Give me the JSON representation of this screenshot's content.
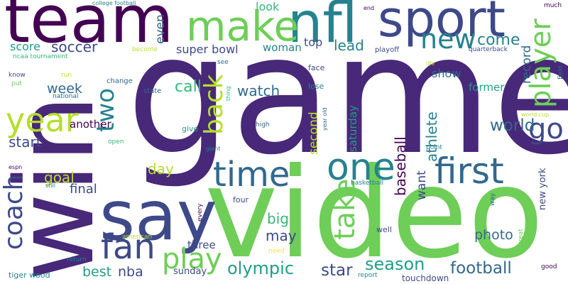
{
  "colors": {
    "background": "#ffffff",
    "palette": [
      "#440154",
      "#482878",
      "#3e4989",
      "#31688e",
      "#26828e",
      "#1f9e89",
      "#35b779",
      "#6ece58",
      "#b5de2b",
      "#fde725"
    ]
  },
  "words": {
    "game": "game",
    "video": "video",
    "win": "win",
    "team": "team",
    "sport": "sport",
    "nfl": "nfl",
    "make": "make",
    "say": "say",
    "time": "time",
    "one": "one",
    "first": "first",
    "fan": "fan",
    "year": "year",
    "play": "play",
    "coach": "coach",
    "player": "player",
    "take": "take",
    "back": "back",
    "go": "go",
    "new": "new",
    "two": "two",
    "football": "football",
    "olympic": "olympic",
    "season": "season",
    "world": "world",
    "star": "star",
    "call": "call",
    "come": "come",
    "soccer": "soccer",
    "score": "score",
    "lead": "lead",
    "week": "week",
    "watch": "watch",
    "athlete": "athlete",
    "baseball": "baseball",
    "start": "start",
    "goal": "goal",
    "day": "day",
    "final": "final",
    "big": "big",
    "may": "may",
    "nba": "nba",
    "best": "best",
    "photo": "photo",
    "record": "record",
    "even": "even",
    "super_bowl": "super bowl",
    "woman": "woman",
    "look": "look",
    "top": "top",
    "show": "show",
    "want": "want",
    "second": "second",
    "saturday": "saturday",
    "another": "another",
    "former": "former",
    "three": "three",
    "new_york": "new york",
    "sunday": "sunday",
    "touchdown": "touchdown",
    "college_football": "college football",
    "ncaa_tournament": "ncaa tournament",
    "become": "become",
    "playoff": "playoff",
    "quarterback": "quarterback",
    "much": "much",
    "end": "end",
    "know": "know",
    "put": "put",
    "run": "run",
    "national": "national",
    "change": "change",
    "state": "state",
    "see": "see",
    "thing": "thing",
    "face": "face",
    "lose": "lose",
    "life": "life",
    "field": "field",
    "world_cup": "world cup",
    "high": "high",
    "year_old": "year old",
    "give": "give",
    "open": "open",
    "giant": "giant",
    "point": "point",
    "espn": "espn",
    "still": "still",
    "basketball": "basketball",
    "four": "four",
    "way": "way",
    "every": "every",
    "american": "american",
    "great": "great",
    "well": "well",
    "need": "need",
    "return": "return",
    "tiger_wood": "tiger wood",
    "report": "report",
    "good": "good"
  }
}
